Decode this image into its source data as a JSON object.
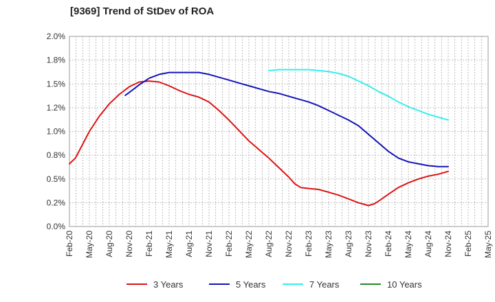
{
  "chart_data": {
    "type": "line",
    "title": "[9369]  Trend of StDev of ROA",
    "xlabel": "",
    "ylabel": "",
    "y_tick_labels": [
      "0.0%",
      "0.2%",
      "0.5%",
      "0.8%",
      "1.0%",
      "1.2%",
      "1.5%",
      "1.8%",
      "2.0%"
    ],
    "y_ticks": [
      0,
      0.25,
      0.5,
      0.75,
      1.0,
      1.25,
      1.5,
      1.75,
      2.0
    ],
    "ylim": [
      0,
      2.0
    ],
    "x_tick_labels": [
      "Feb-20",
      "May-20",
      "Aug-20",
      "Nov-20",
      "Feb-21",
      "May-21",
      "Aug-21",
      "Nov-21",
      "Feb-22",
      "May-22",
      "Aug-22",
      "Nov-22",
      "Feb-23",
      "May-23",
      "Aug-23",
      "Nov-23",
      "Feb-24",
      "May-24",
      "Aug-24",
      "Nov-24",
      "Feb-25",
      "May-25"
    ],
    "grid": true,
    "legend_position": "bottom",
    "series": [
      {
        "name": "3 Years",
        "color": "#dd1111",
        "points": [
          [
            0,
            0.66
          ],
          [
            0.3,
            0.72
          ],
          [
            0.6,
            0.84
          ],
          [
            1,
            1.0
          ],
          [
            1.5,
            1.16
          ],
          [
            2,
            1.29
          ],
          [
            2.5,
            1.39
          ],
          [
            3,
            1.47
          ],
          [
            3.5,
            1.52
          ],
          [
            4,
            1.53
          ],
          [
            4.5,
            1.52
          ],
          [
            5,
            1.48
          ],
          [
            5.5,
            1.43
          ],
          [
            6,
            1.39
          ],
          [
            6.5,
            1.36
          ],
          [
            7,
            1.31
          ],
          [
            7.5,
            1.22
          ],
          [
            8,
            1.12
          ],
          [
            8.5,
            1.01
          ],
          [
            9,
            0.9
          ],
          [
            9.5,
            0.81
          ],
          [
            10,
            0.72
          ],
          [
            10.5,
            0.62
          ],
          [
            11,
            0.52
          ],
          [
            11.3,
            0.45
          ],
          [
            11.6,
            0.41
          ],
          [
            12,
            0.4
          ],
          [
            12.5,
            0.39
          ],
          [
            13,
            0.36
          ],
          [
            13.5,
            0.33
          ],
          [
            14,
            0.29
          ],
          [
            14.5,
            0.25
          ],
          [
            15,
            0.22
          ],
          [
            15.3,
            0.24
          ],
          [
            15.6,
            0.28
          ],
          [
            16,
            0.34
          ],
          [
            16.5,
            0.41
          ],
          [
            17,
            0.46
          ],
          [
            17.5,
            0.5
          ],
          [
            18,
            0.53
          ],
          [
            18.5,
            0.55
          ],
          [
            19,
            0.58
          ]
        ]
      },
      {
        "name": "5 Years",
        "color": "#1111bb",
        "points": [
          [
            2.8,
            1.38
          ],
          [
            3,
            1.41
          ],
          [
            3.5,
            1.49
          ],
          [
            4,
            1.56
          ],
          [
            4.5,
            1.6
          ],
          [
            5,
            1.62
          ],
          [
            5.5,
            1.62
          ],
          [
            6,
            1.62
          ],
          [
            6.5,
            1.62
          ],
          [
            7,
            1.6
          ],
          [
            7.5,
            1.57
          ],
          [
            8,
            1.54
          ],
          [
            8.5,
            1.51
          ],
          [
            9,
            1.48
          ],
          [
            9.5,
            1.45
          ],
          [
            10,
            1.42
          ],
          [
            10.5,
            1.4
          ],
          [
            11,
            1.37
          ],
          [
            11.5,
            1.34
          ],
          [
            12,
            1.31
          ],
          [
            12.5,
            1.27
          ],
          [
            13,
            1.22
          ],
          [
            13.5,
            1.17
          ],
          [
            14,
            1.12
          ],
          [
            14.5,
            1.06
          ],
          [
            15,
            0.97
          ],
          [
            15.5,
            0.88
          ],
          [
            16,
            0.79
          ],
          [
            16.5,
            0.72
          ],
          [
            17,
            0.68
          ],
          [
            17.5,
            0.66
          ],
          [
            18,
            0.64
          ],
          [
            18.5,
            0.63
          ],
          [
            19,
            0.63
          ]
        ]
      },
      {
        "name": "7 Years",
        "color": "#33eeee",
        "points": [
          [
            10,
            1.64
          ],
          [
            10.5,
            1.65
          ],
          [
            11,
            1.65
          ],
          [
            11.5,
            1.65
          ],
          [
            12,
            1.65
          ],
          [
            12.5,
            1.64
          ],
          [
            13,
            1.63
          ],
          [
            13.5,
            1.61
          ],
          [
            14,
            1.58
          ],
          [
            14.5,
            1.53
          ],
          [
            15,
            1.48
          ],
          [
            15.5,
            1.42
          ],
          [
            16,
            1.37
          ],
          [
            16.5,
            1.31
          ],
          [
            17,
            1.26
          ],
          [
            17.5,
            1.22
          ],
          [
            18,
            1.18
          ],
          [
            18.5,
            1.15
          ],
          [
            19,
            1.12
          ]
        ]
      },
      {
        "name": "10 Years",
        "color": "#228822",
        "points": []
      }
    ]
  }
}
